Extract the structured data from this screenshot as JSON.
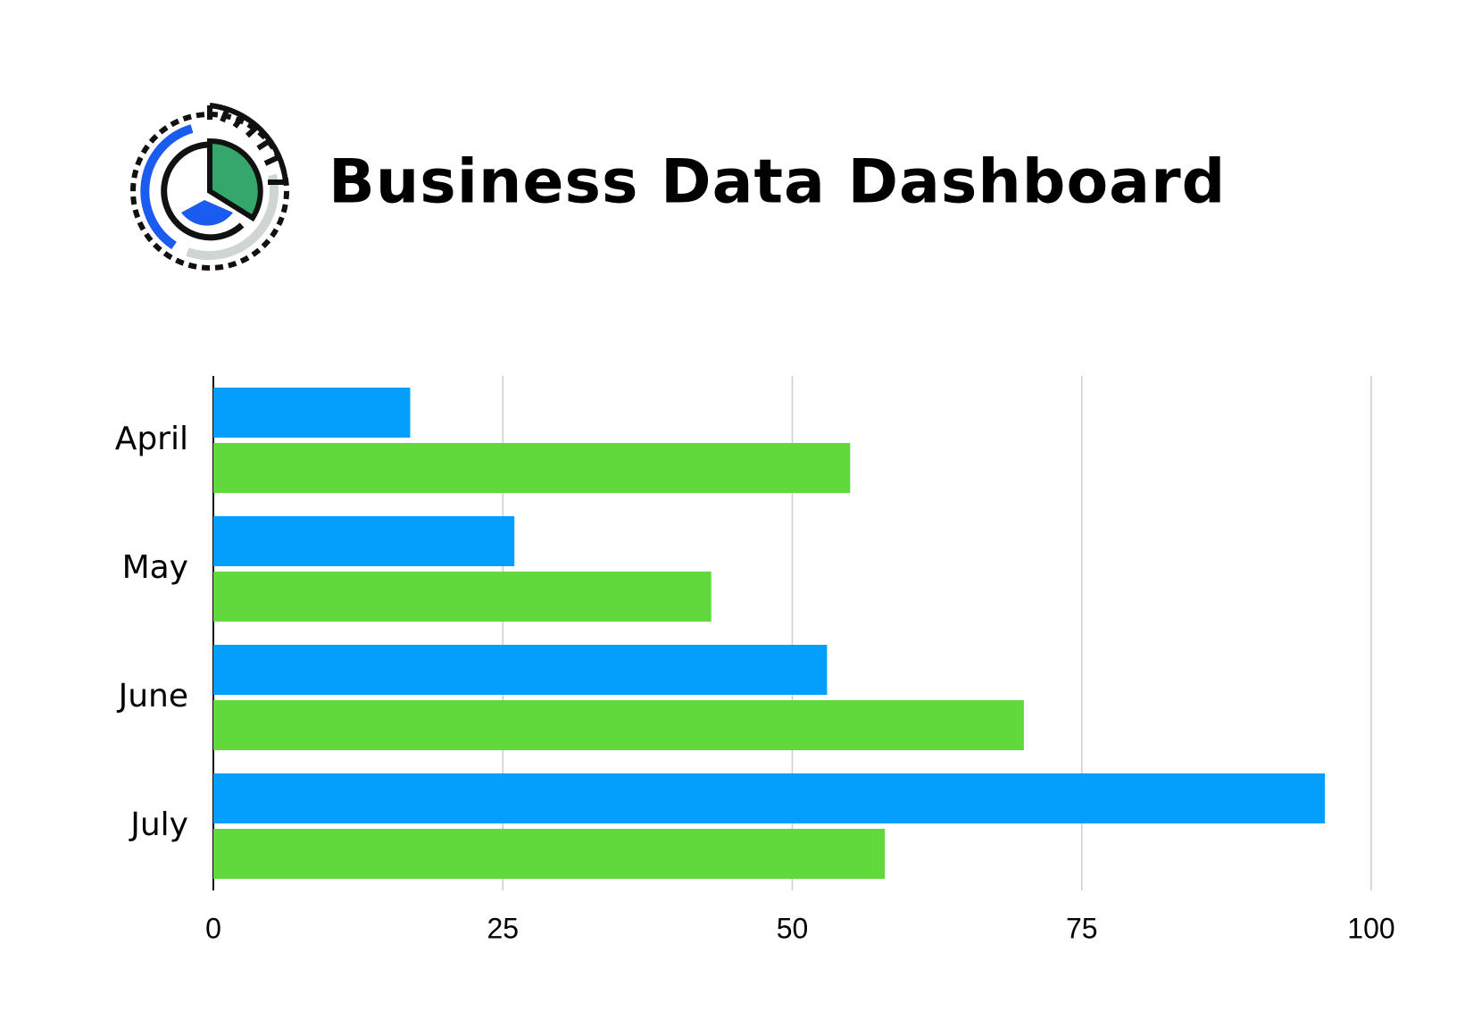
{
  "chart_data": {
    "type": "hbar",
    "title": "Business Data Dashboard",
    "categories": [
      "April",
      "May",
      "June",
      "July"
    ],
    "series": [
      {
        "color": "#039ffc",
        "values": [
          17,
          26,
          53,
          96
        ]
      },
      {
        "color": "#62d93a",
        "values": [
          55,
          43,
          70,
          58
        ]
      }
    ],
    "xlim": [
      0,
      100
    ],
    "xticks": [
      0,
      25,
      50,
      75,
      100
    ],
    "grid": true
  }
}
